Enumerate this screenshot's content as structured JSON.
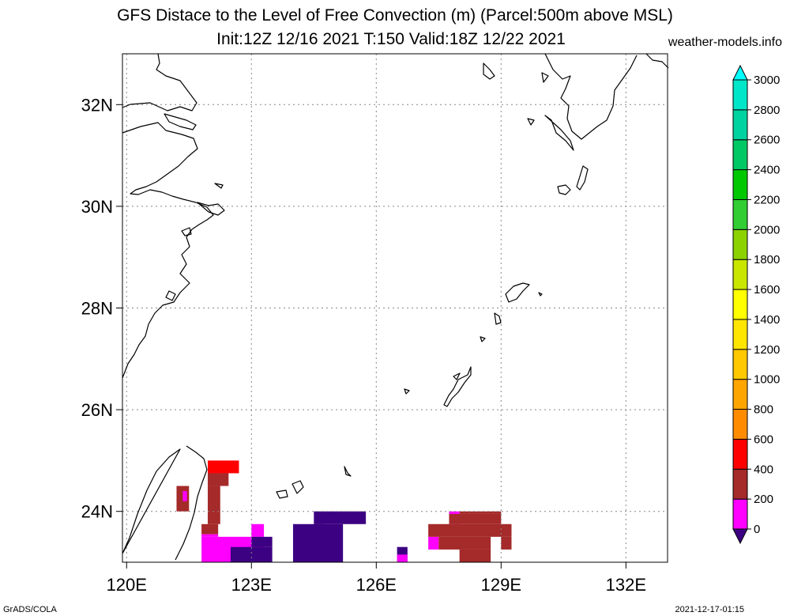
{
  "title": {
    "line1": "GFS Distace to the Level of Free Convection (m) (Parcel:500m above MSL)",
    "line2": "Init:12Z 12/16 2021 T:150 Valid:18Z 12/22 2021"
  },
  "source_site": "weather-models.info",
  "footer": {
    "left": "GrADS/COLA",
    "right": "2021-12-17-01:15"
  },
  "map": {
    "lon_range": [
      119.9,
      133.0
    ],
    "lat_range": [
      23.0,
      33.0
    ],
    "x_ticks": [
      {
        "value": 120,
        "label": "120E"
      },
      {
        "value": 123,
        "label": "123E"
      },
      {
        "value": 126,
        "label": "126E"
      },
      {
        "value": 129,
        "label": "129E"
      },
      {
        "value": 132,
        "label": "132E"
      }
    ],
    "y_ticks": [
      {
        "value": 24,
        "label": "24N"
      },
      {
        "value": 26,
        "label": "26N"
      },
      {
        "value": 28,
        "label": "28N"
      },
      {
        "value": 30,
        "label": "30N"
      },
      {
        "value": 32,
        "label": "32N"
      }
    ],
    "grid": true
  },
  "colorbar": {
    "labels": [
      "0",
      "200",
      "400",
      "600",
      "800",
      "1000",
      "1200",
      "1400",
      "1600",
      "1800",
      "2000",
      "2200",
      "2400",
      "2600",
      "2800",
      "3000"
    ],
    "colors": [
      "#3c0082",
      "#ff00ff",
      "#a52a2a",
      "#ff0000",
      "#ff8c00",
      "#ffa500",
      "#ffc800",
      "#ffe600",
      "#ffff00",
      "#c8e600",
      "#8cd200",
      "#32cd32",
      "#00c800",
      "#00c864",
      "#00d2a0",
      "#00e6c8",
      "#00ffff"
    ]
  },
  "field_cells": [
    {
      "lon": [
        121.2,
        121.5
      ],
      "lat": [
        24.0,
        24.5
      ],
      "color_index": 2
    },
    {
      "lon": [
        121.35,
        121.45
      ],
      "lat": [
        24.2,
        24.4
      ],
      "color_index": 1
    },
    {
      "lon": [
        121.95,
        122.7
      ],
      "lat": [
        24.75,
        25.0
      ],
      "color_index": 3
    },
    {
      "lon": [
        121.95,
        122.45
      ],
      "lat": [
        24.5,
        24.75
      ],
      "color_index": 2
    },
    {
      "lon": [
        121.95,
        122.25
      ],
      "lat": [
        23.75,
        24.5
      ],
      "color_index": 2
    },
    {
      "lon": [
        121.8,
        122.2
      ],
      "lat": [
        23.55,
        23.75
      ],
      "color_index": 2
    },
    {
      "lon": [
        121.8,
        123.3
      ],
      "lat": [
        23.0,
        23.5
      ],
      "color_index": 1
    },
    {
      "lon": [
        121.8,
        122.2
      ],
      "lat": [
        23.5,
        23.55
      ],
      "color_index": 1
    },
    {
      "lon": [
        123.0,
        123.3
      ],
      "lat": [
        23.5,
        23.75
      ],
      "color_index": 1
    },
    {
      "lon": [
        122.5,
        123.5
      ],
      "lat": [
        23.0,
        23.3
      ],
      "color_index": 0
    },
    {
      "lon": [
        123.0,
        123.5
      ],
      "lat": [
        23.3,
        23.5
      ],
      "color_index": 0
    },
    {
      "lon": [
        124.0,
        124.75
      ],
      "lat": [
        23.0,
        23.75
      ],
      "color_index": 0
    },
    {
      "lon": [
        124.5,
        125.2
      ],
      "lat": [
        23.0,
        23.75
      ],
      "color_index": 0
    },
    {
      "lon": [
        124.5,
        125.75
      ],
      "lat": [
        23.75,
        24.0
      ],
      "color_index": 0
    },
    {
      "lon": [
        126.5,
        126.75
      ],
      "lat": [
        23.0,
        23.3
      ],
      "color_index": 0
    },
    {
      "lon": [
        126.5,
        126.75
      ],
      "lat": [
        23.0,
        23.15
      ],
      "color_index": 1
    },
    {
      "lon": [
        127.25,
        127.5
      ],
      "lat": [
        23.25,
        23.5
      ],
      "color_index": 1
    },
    {
      "lon": [
        127.75,
        128.0
      ],
      "lat": [
        23.75,
        24.0
      ],
      "color_index": 1
    },
    {
      "lon": [
        127.25,
        129.25
      ],
      "lat": [
        23.5,
        23.75
      ],
      "color_index": 2
    },
    {
      "lon": [
        127.5,
        128.75
      ],
      "lat": [
        23.25,
        23.5
      ],
      "color_index": 2
    },
    {
      "lon": [
        128.0,
        128.75
      ],
      "lat": [
        23.0,
        23.25
      ],
      "color_index": 2
    },
    {
      "lon": [
        127.75,
        129.0
      ],
      "lat": [
        23.75,
        23.95
      ],
      "color_index": 2
    },
    {
      "lon": [
        128.0,
        129.0
      ],
      "lat": [
        23.95,
        24.0
      ],
      "color_index": 2
    },
    {
      "lon": [
        129.0,
        129.25
      ],
      "lat": [
        23.25,
        23.5
      ],
      "color_index": 2
    }
  ]
}
